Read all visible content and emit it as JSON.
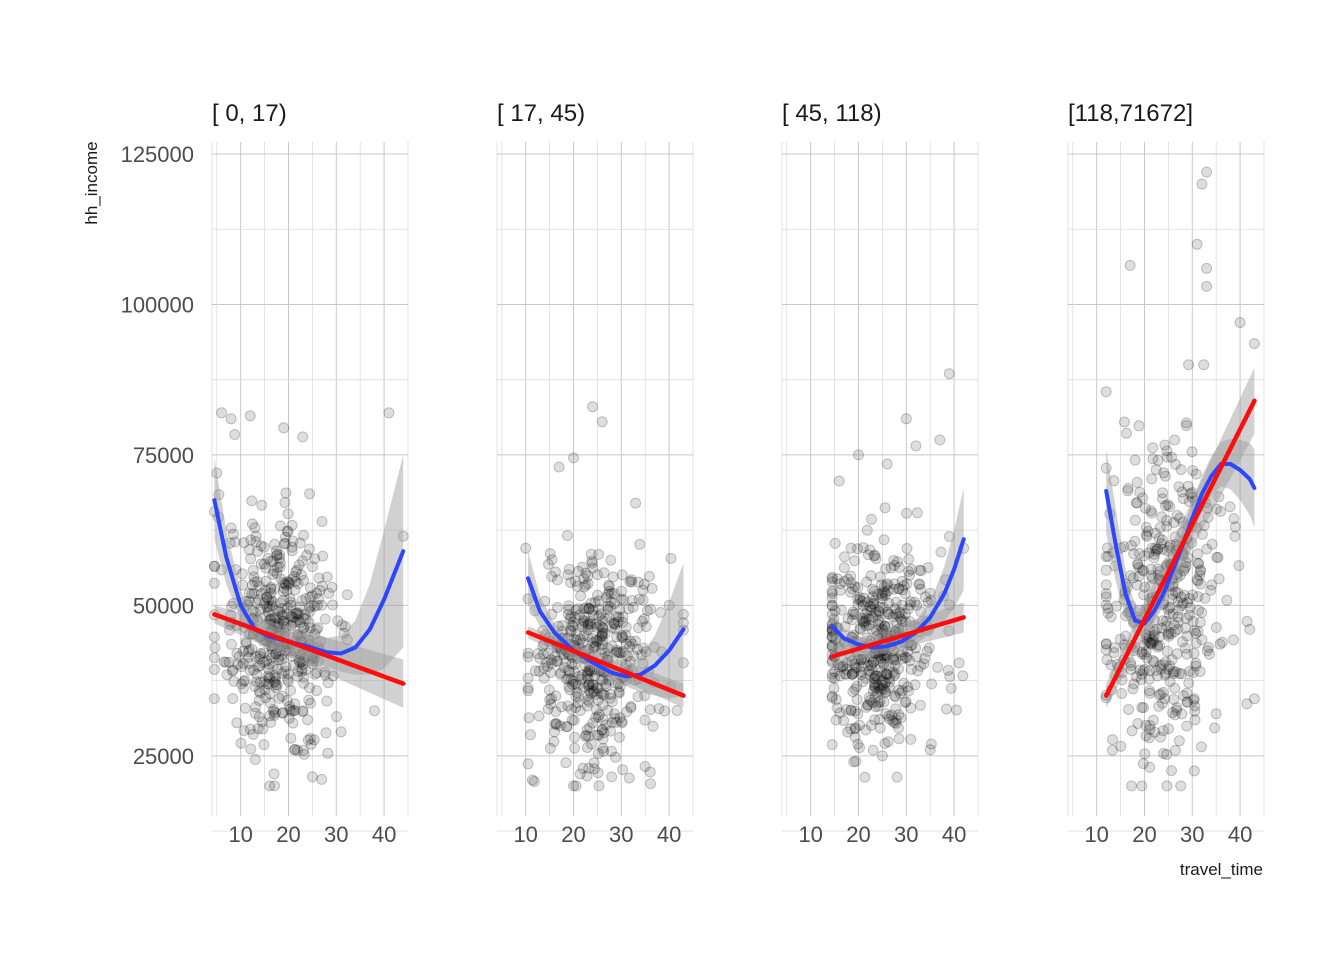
{
  "chart_data": {
    "type": "scatter",
    "facet_variable_levels": [
      "[  0,   17)",
      "[ 17,   45)",
      "[ 45,  118)",
      "[118,71672]"
    ],
    "xlabel": "travel_time",
    "ylabel": "hh_income",
    "xlim": [
      4,
      45
    ],
    "ylim": [
      15000,
      127000
    ],
    "x_ticks": [
      10,
      20,
      30,
      40
    ],
    "x_tick_labels": [
      "10",
      "20",
      "30",
      "40"
    ],
    "y_ticks": [
      25000,
      50000,
      75000,
      100000,
      125000
    ],
    "y_tick_labels": [
      "25000",
      "50000",
      "75000",
      "100000",
      "125000"
    ],
    "grid": true,
    "legend": "none",
    "point_color": "#000000",
    "smooth_color": "#2d46ff",
    "linear_color": "#ff0d0d",
    "band_color": "#999999",
    "panels": [
      {
        "label": "[  0,   17)",
        "linear_fit": {
          "x": [
            4.5,
            44
          ],
          "y": [
            48500,
            37000
          ]
        },
        "smooth_fit": {
          "x": [
            4.5,
            7,
            10,
            13,
            16,
            20,
            24,
            28,
            31,
            34,
            37,
            40,
            44
          ],
          "y": [
            67500,
            58000,
            50000,
            46000,
            44800,
            44000,
            43200,
            42200,
            42000,
            43000,
            46000,
            51000,
            59000
          ]
        },
        "smooth_band": {
          "x": [
            4.5,
            7,
            10,
            13,
            16,
            20,
            24,
            28,
            31,
            34,
            37,
            40,
            44
          ],
          "lower": [
            61000,
            53500,
            47500,
            44000,
            43000,
            42300,
            41200,
            39800,
            39000,
            38500,
            38500,
            39500,
            43000
          ],
          "upper": [
            74500,
            62500,
            52500,
            48000,
            46600,
            45700,
            45200,
            44600,
            45000,
            47500,
            53500,
            62500,
            75000
          ]
        },
        "linear_band": {
          "x": [
            4.5,
            44
          ],
          "lower": [
            47000,
            33000
          ],
          "upper": [
            50000,
            41000
          ]
        },
        "points_sample": [
          [
            5,
            72000
          ],
          [
            6,
            82000
          ],
          [
            8,
            81000
          ],
          [
            12,
            81500
          ],
          [
            19,
            79500
          ],
          [
            23,
            78000
          ],
          [
            41,
            82000
          ],
          [
            44,
            61500
          ],
          [
            38,
            32500
          ],
          [
            17,
            22000
          ],
          [
            25,
            21500
          ],
          [
            31,
            29000
          ],
          [
            14,
            40000
          ],
          [
            18,
            47000
          ],
          [
            22,
            45000
          ]
        ]
      },
      {
        "label": "[ 17,   45)",
        "linear_fit": {
          "x": [
            10.5,
            43
          ],
          "y": [
            45500,
            35000
          ]
        },
        "smooth_fit": {
          "x": [
            10.5,
            13,
            16,
            20,
            24,
            28,
            31,
            34,
            37,
            40,
            43
          ],
          "y": [
            54500,
            49000,
            45500,
            42500,
            40500,
            38800,
            38200,
            38500,
            40000,
            42500,
            46000
          ]
        },
        "smooth_band": {
          "x": [
            10.5,
            13,
            16,
            20,
            24,
            28,
            31,
            34,
            37,
            40,
            43
          ],
          "lower": [
            50000,
            46500,
            44000,
            41300,
            39300,
            37500,
            36600,
            35500,
            35000,
            34500,
            35000
          ],
          "upper": [
            59000,
            51500,
            47000,
            43700,
            41700,
            40100,
            39800,
            41500,
            45000,
            50500,
            57000
          ]
        },
        "linear_band": {
          "x": [
            10.5,
            43
          ],
          "lower": [
            44500,
            33000
          ],
          "upper": [
            46500,
            37000
          ]
        },
        "points_sample": [
          [
            24,
            83000
          ],
          [
            26,
            80500
          ],
          [
            20,
            74500
          ],
          [
            17,
            73000
          ],
          [
            10,
            59500
          ],
          [
            33,
            67000
          ],
          [
            40,
            50000
          ],
          [
            43,
            48500
          ],
          [
            20,
            20000
          ],
          [
            28,
            21500
          ],
          [
            23,
            35000
          ],
          [
            26,
            45000
          ],
          [
            32,
            33000
          ]
        ]
      },
      {
        "label": "[ 45,  118)",
        "linear_fit": {
          "x": [
            14.5,
            42
          ],
          "y": [
            41500,
            48000
          ]
        },
        "smooth_fit": {
          "x": [
            14.5,
            17,
            20,
            23,
            26,
            29,
            32,
            35,
            38,
            40,
            42
          ],
          "y": [
            46500,
            44500,
            43500,
            43000,
            43200,
            44000,
            45500,
            48000,
            52000,
            56000,
            61000
          ]
        },
        "smooth_band": {
          "x": [
            14.5,
            17,
            20,
            23,
            26,
            29,
            32,
            35,
            38,
            40,
            42
          ],
          "lower": [
            44000,
            42800,
            42200,
            41800,
            41900,
            42500,
            43600,
            45300,
            47500,
            49500,
            52500
          ],
          "upper": [
            49000,
            46200,
            44800,
            44200,
            44500,
            45500,
            47400,
            50700,
            56500,
            62500,
            69500
          ]
        },
        "linear_band": {
          "x": [
            14.5,
            42
          ],
          "lower": [
            40000,
            45500
          ],
          "upper": [
            43000,
            50500
          ]
        },
        "points_sample": [
          [
            39,
            88500
          ],
          [
            30,
            81000
          ],
          [
            32,
            76500
          ],
          [
            37,
            77500
          ],
          [
            20,
            75000
          ],
          [
            26,
            73500
          ],
          [
            42,
            59500
          ],
          [
            19,
            24000
          ],
          [
            25,
            25000
          ],
          [
            35,
            26000
          ],
          [
            22,
            40000
          ],
          [
            24,
            45000
          ]
        ]
      },
      {
        "label": "[118,71672]",
        "linear_fit": {
          "x": [
            12,
            43
          ],
          "y": [
            35000,
            84000
          ]
        },
        "smooth_fit": {
          "x": [
            12,
            14,
            16,
            18,
            20,
            22,
            24,
            26,
            28,
            30,
            32,
            34,
            36,
            38,
            40,
            42,
            43
          ],
          "y": [
            69000,
            60000,
            52000,
            47500,
            47000,
            49000,
            52000,
            56000,
            60000,
            64500,
            68500,
            71500,
            73500,
            73500,
            72500,
            71000,
            69500
          ]
        },
        "smooth_band": {
          "x": [
            12,
            14,
            16,
            18,
            20,
            22,
            24,
            26,
            28,
            30,
            32,
            34,
            36,
            38,
            40,
            42,
            43
          ],
          "lower": [
            62000,
            54000,
            48000,
            45000,
            44800,
            47000,
            50000,
            53800,
            57500,
            61800,
            65500,
            68200,
            69800,
            69300,
            67500,
            65000,
            63000
          ],
          "upper": [
            76000,
            66000,
            56000,
            50000,
            49200,
            51000,
            54000,
            58200,
            62500,
            67200,
            71500,
            74800,
            77200,
            77700,
            77500,
            77000,
            76000
          ]
        },
        "linear_band": {
          "x": [
            12,
            43
          ],
          "lower": [
            33000,
            78500
          ],
          "upper": [
            37000,
            89500
          ]
        },
        "points_sample": [
          [
            33,
            122000
          ],
          [
            32,
            120000
          ],
          [
            31,
            110000
          ],
          [
            17,
            106500
          ],
          [
            33,
            106000
          ],
          [
            33,
            103000
          ],
          [
            12,
            85500
          ],
          [
            40,
            97000
          ],
          [
            43,
            93500
          ],
          [
            43,
            34500
          ],
          [
            42,
            46000
          ],
          [
            21,
            28000
          ],
          [
            25,
            29500
          ],
          [
            35,
            32000
          ],
          [
            22,
            45000
          ],
          [
            28,
            60000
          ],
          [
            30,
            68000
          ]
        ]
      }
    ]
  }
}
